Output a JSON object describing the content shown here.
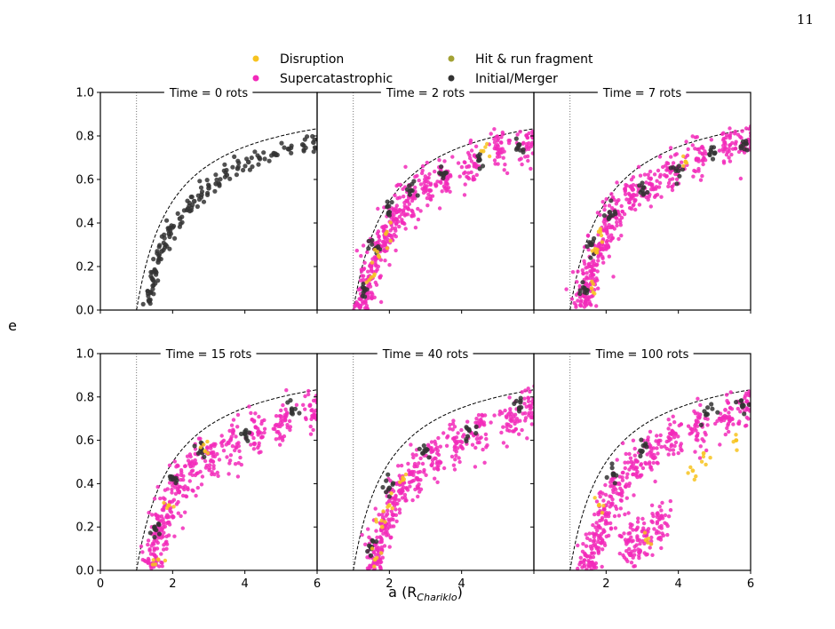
{
  "page_number": "11",
  "chart_data": {
    "type": "scatter",
    "grid": false,
    "xlabel": "a (R",
    "xlabel_sub": "Chariklo",
    "xlabel_close": ")",
    "ylabel": "e",
    "xlim": [
      0,
      6
    ],
    "ylim": [
      0,
      1
    ],
    "x_ticks": [
      0,
      2,
      4,
      6
    ],
    "y_ticks": [
      0.0,
      0.2,
      0.4,
      0.6,
      0.8,
      1.0
    ],
    "x_tick_labels": [
      "0",
      "2",
      "4",
      "6"
    ],
    "y_tick_labels": [
      "0.0",
      "0.2",
      "0.4",
      "0.6",
      "0.8",
      "1.0"
    ],
    "reference_lines": [
      {
        "style": "dotted",
        "orientation": "vertical",
        "x": 1.0
      },
      {
        "style": "dashed",
        "curve": "e = 1 - 1/a",
        "x_range": [
          1,
          6
        ]
      }
    ],
    "legend": {
      "position": "top-center",
      "entries": [
        {
          "label": "Disruption",
          "color": "#F7C31F"
        },
        {
          "label": "Hit & run fragment",
          "color": "#A3A234"
        },
        {
          "label": "Supercatastrophic",
          "color": "#F22ABA"
        },
        {
          "label": "Initial/Merger",
          "color": "#333333"
        }
      ]
    },
    "panels": [
      {
        "title": "Time = 0 rots",
        "series": [
          {
            "name": "Initial/Merger",
            "approx_points": [
              [
                1.35,
                0.04
              ],
              [
                1.4,
                0.08
              ],
              [
                1.45,
                0.14
              ],
              [
                1.5,
                0.18
              ],
              [
                1.6,
                0.22
              ],
              [
                1.7,
                0.27
              ],
              [
                1.8,
                0.3
              ],
              [
                1.9,
                0.35
              ],
              [
                2.0,
                0.38
              ],
              [
                2.2,
                0.42
              ],
              [
                2.4,
                0.46
              ],
              [
                2.6,
                0.5
              ],
              [
                2.8,
                0.53
              ],
              [
                3.0,
                0.56
              ],
              [
                3.2,
                0.58
              ],
              [
                3.5,
                0.62
              ],
              [
                3.8,
                0.65
              ],
              [
                4.1,
                0.68
              ],
              [
                4.4,
                0.7
              ],
              [
                4.8,
                0.72
              ],
              [
                5.2,
                0.74
              ],
              [
                5.6,
                0.76
              ],
              [
                5.9,
                0.77
              ]
            ]
          }
        ]
      },
      {
        "title": "Time = 2 rots",
        "series": [
          {
            "name": "Supercatastrophic",
            "approx_points": [
              [
                1.2,
                0.02
              ],
              [
                1.4,
                0.1
              ],
              [
                1.5,
                0.2
              ],
              [
                1.7,
                0.3
              ],
              [
                1.9,
                0.36
              ],
              [
                2.2,
                0.45
              ],
              [
                2.5,
                0.5
              ],
              [
                3.0,
                0.56
              ],
              [
                3.5,
                0.61
              ],
              [
                4.2,
                0.66
              ],
              [
                5.0,
                0.72
              ],
              [
                5.8,
                0.75
              ]
            ]
          },
          {
            "name": "Initial/Merger",
            "approx_points": [
              [
                1.3,
                0.1
              ],
              [
                1.6,
                0.28
              ],
              [
                2.0,
                0.45
              ],
              [
                2.6,
                0.55
              ],
              [
                3.5,
                0.62
              ],
              [
                4.5,
                0.69
              ],
              [
                5.6,
                0.76
              ]
            ]
          },
          {
            "name": "Disruption",
            "approx_points": [
              [
                1.5,
                0.15
              ],
              [
                1.7,
                0.25
              ],
              [
                1.9,
                0.35
              ],
              [
                4.6,
                0.73
              ]
            ]
          }
        ]
      },
      {
        "title": "Time = 7 rots",
        "series": [
          {
            "name": "Supercatastrophic",
            "approx_points": [
              [
                1.3,
                0.02
              ],
              [
                1.5,
                0.1
              ],
              [
                1.6,
                0.2
              ],
              [
                1.8,
                0.3
              ],
              [
                2.0,
                0.38
              ],
              [
                2.3,
                0.45
              ],
              [
                2.7,
                0.52
              ],
              [
                3.2,
                0.58
              ],
              [
                3.8,
                0.64
              ],
              [
                4.5,
                0.69
              ],
              [
                5.3,
                0.74
              ],
              [
                5.9,
                0.77
              ]
            ]
          },
          {
            "name": "Initial/Merger",
            "approx_points": [
              [
                1.4,
                0.1
              ],
              [
                1.6,
                0.3
              ],
              [
                2.1,
                0.45
              ],
              [
                3.0,
                0.55
              ],
              [
                4.0,
                0.64
              ],
              [
                5.0,
                0.72
              ],
              [
                5.8,
                0.76
              ]
            ]
          },
          {
            "name": "Disruption",
            "approx_points": [
              [
                1.6,
                0.1
              ],
              [
                1.7,
                0.28
              ],
              [
                1.8,
                0.36
              ],
              [
                4.2,
                0.68
              ]
            ]
          }
        ]
      },
      {
        "title": "Time = 15 rots",
        "series": [
          {
            "name": "Supercatastrophic",
            "approx_points": [
              [
                1.4,
                0.02
              ],
              [
                1.5,
                0.1
              ],
              [
                1.6,
                0.2
              ],
              [
                1.8,
                0.3
              ],
              [
                2.1,
                0.4
              ],
              [
                2.5,
                0.48
              ],
              [
                3.0,
                0.54
              ],
              [
                3.6,
                0.6
              ],
              [
                4.3,
                0.66
              ],
              [
                5.0,
                0.71
              ],
              [
                5.8,
                0.76
              ]
            ]
          },
          {
            "name": "Initial/Merger",
            "approx_points": [
              [
                1.5,
                0.2
              ],
              [
                2.0,
                0.42
              ],
              [
                2.8,
                0.56
              ],
              [
                4.0,
                0.63
              ],
              [
                5.3,
                0.74
              ]
            ]
          },
          {
            "name": "Disruption",
            "approx_points": [
              [
                1.6,
                0.05
              ],
              [
                1.9,
                0.3
              ],
              [
                2.9,
                0.55
              ]
            ]
          }
        ]
      },
      {
        "title": "Time = 40 rots",
        "series": [
          {
            "name": "Supercatastrophic",
            "approx_points": [
              [
                1.5,
                0.02
              ],
              [
                1.6,
                0.12
              ],
              [
                1.8,
                0.22
              ],
              [
                2.0,
                0.32
              ],
              [
                2.3,
                0.4
              ],
              [
                2.7,
                0.48
              ],
              [
                3.2,
                0.55
              ],
              [
                3.8,
                0.61
              ],
              [
                4.5,
                0.67
              ],
              [
                5.3,
                0.72
              ],
              [
                5.9,
                0.76
              ]
            ]
          },
          {
            "name": "Initial/Merger",
            "approx_points": [
              [
                1.5,
                0.1
              ],
              [
                2.0,
                0.38
              ],
              [
                3.0,
                0.55
              ],
              [
                4.2,
                0.65
              ],
              [
                5.6,
                0.75
              ]
            ]
          },
          {
            "name": "Disruption",
            "approx_points": [
              [
                1.6,
                0.05
              ],
              [
                1.8,
                0.2
              ],
              [
                2.0,
                0.3
              ],
              [
                2.4,
                0.42
              ]
            ]
          }
        ]
      },
      {
        "title": "Time = 100 rots",
        "series": [
          {
            "name": "Supercatastrophic",
            "approx_points": [
              [
                1.4,
                0.02
              ],
              [
                1.6,
                0.1
              ],
              [
                1.8,
                0.2
              ],
              [
                2.0,
                0.3
              ],
              [
                2.3,
                0.4
              ],
              [
                2.7,
                0.5
              ],
              [
                3.2,
                0.57
              ],
              [
                3.8,
                0.63
              ],
              [
                4.5,
                0.69
              ],
              [
                5.3,
                0.74
              ],
              [
                5.9,
                0.78
              ],
              [
                3.5,
                0.24
              ],
              [
                3.0,
                0.18
              ],
              [
                2.6,
                0.13
              ]
            ]
          },
          {
            "name": "Initial/Merger",
            "approx_points": [
              [
                2.2,
                0.44
              ],
              [
                3.0,
                0.55
              ],
              [
                4.8,
                0.72
              ],
              [
                5.8,
                0.76
              ]
            ]
          },
          {
            "name": "Disruption",
            "approx_points": [
              [
                4.7,
                0.54
              ],
              [
                5.6,
                0.6
              ],
              [
                4.4,
                0.46
              ],
              [
                3.1,
                0.14
              ],
              [
                1.8,
                0.3
              ]
            ]
          }
        ]
      }
    ]
  }
}
